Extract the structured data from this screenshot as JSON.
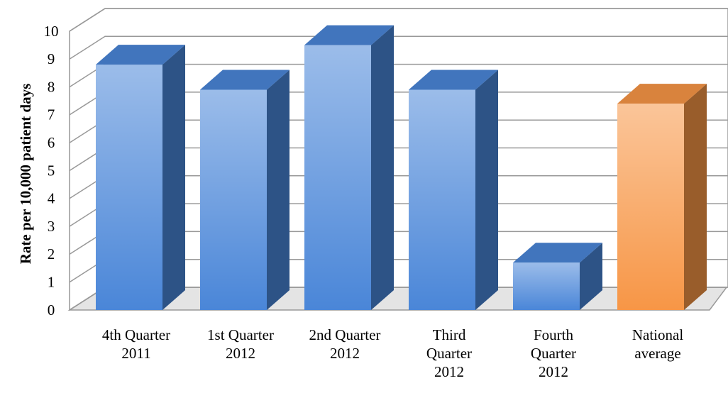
{
  "chart_data": {
    "type": "bar3d",
    "y_label": "Rate per 10,000 patient days",
    "categories": [
      "4th Quarter\n2011",
      "1st Quarter\n2012",
      "2nd Quarter\n2012",
      "Third\nQuarter\n2012",
      "Fourth\nQuarter\n2012",
      "National\naverage"
    ],
    "values": [
      8.8,
      7.9,
      9.5,
      7.9,
      1.7,
      7.4
    ],
    "colors": [
      "#4a86d8",
      "#4a86d8",
      "#4a86d8",
      "#4a86d8",
      "#4a86d8",
      "#f79646"
    ],
    "ylim": [
      0,
      10
    ],
    "yticks": [
      0,
      1,
      2,
      3,
      4,
      5,
      6,
      7,
      8,
      9,
      10
    ],
    "grid": true
  }
}
